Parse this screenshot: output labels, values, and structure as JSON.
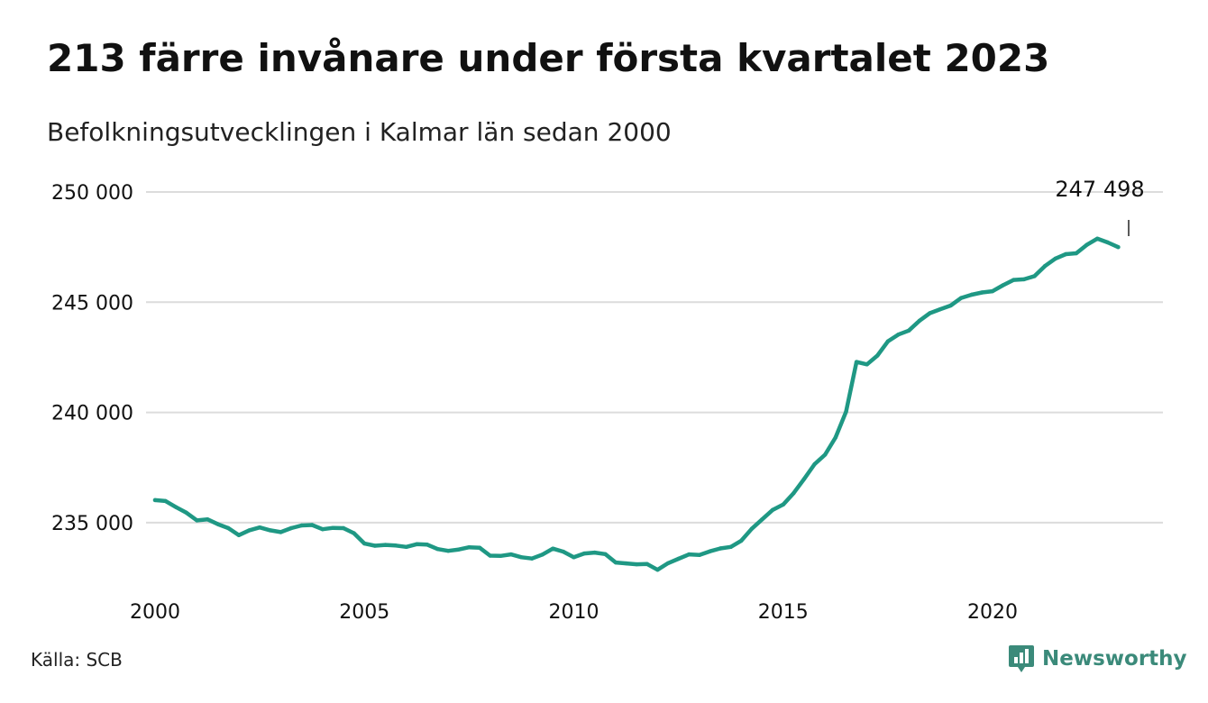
{
  "title": "213 färre invånare under första kvartalet 2023",
  "subtitle": "Befolkningsutvecklingen i Kalmar län sedan 2000",
  "source": "Källa: SCB",
  "brand": {
    "name": "Newsworthy",
    "icon": "newsworthy-logo-icon",
    "color": "#3b8a7a"
  },
  "colors": {
    "line": "#1f9884",
    "grid": "#dcdcdc",
    "text": "#111111"
  },
  "chart_data": {
    "type": "line",
    "title": "213 färre invånare under första kvartalet 2023",
    "subtitle": "Befolkningsutvecklingen i Kalmar län sedan 2000",
    "xlabel": "",
    "ylabel": "",
    "xlim": [
      2000,
      2023.25
    ],
    "ylim": [
      232500,
      250000
    ],
    "x_ticks": [
      2000,
      2005,
      2010,
      2015,
      2020
    ],
    "x_tick_labels": [
      "2000",
      "2005",
      "2010",
      "2015",
      "2020"
    ],
    "y_ticks": [
      235000,
      240000,
      245000,
      250000
    ],
    "y_tick_labels": [
      "235 000",
      "240 000",
      "245 000",
      "250 000"
    ],
    "grid": "horizontal",
    "annotation": {
      "label": "247 498",
      "x": 2023.25,
      "y": 247498
    },
    "series": [
      {
        "values": [
          [
            2000.0,
            236020
          ],
          [
            2000.25,
            235980
          ],
          [
            2000.5,
            235700
          ],
          [
            2000.75,
            235450
          ],
          [
            2001.0,
            235100
          ],
          [
            2001.25,
            235150
          ],
          [
            2001.5,
            234930
          ],
          [
            2001.75,
            234750
          ],
          [
            2002.0,
            234430
          ],
          [
            2002.25,
            234650
          ],
          [
            2002.5,
            234780
          ],
          [
            2002.75,
            234650
          ],
          [
            2003.0,
            234570
          ],
          [
            2003.25,
            234750
          ],
          [
            2003.5,
            234870
          ],
          [
            2003.75,
            234890
          ],
          [
            2004.0,
            234700
          ],
          [
            2004.25,
            234760
          ],
          [
            2004.5,
            234750
          ],
          [
            2004.75,
            234520
          ],
          [
            2005.0,
            234050
          ],
          [
            2005.25,
            233950
          ],
          [
            2005.5,
            233990
          ],
          [
            2005.75,
            233960
          ],
          [
            2006.0,
            233900
          ],
          [
            2006.25,
            234020
          ],
          [
            2006.5,
            234000
          ],
          [
            2006.75,
            233800
          ],
          [
            2007.0,
            233720
          ],
          [
            2007.25,
            233780
          ],
          [
            2007.5,
            233880
          ],
          [
            2007.75,
            233860
          ],
          [
            2008.0,
            233500
          ],
          [
            2008.25,
            233490
          ],
          [
            2008.5,
            233560
          ],
          [
            2008.75,
            233430
          ],
          [
            2009.0,
            233370
          ],
          [
            2009.25,
            233550
          ],
          [
            2009.5,
            233820
          ],
          [
            2009.75,
            233680
          ],
          [
            2010.0,
            233430
          ],
          [
            2010.25,
            233600
          ],
          [
            2010.5,
            233640
          ],
          [
            2010.75,
            233570
          ],
          [
            2011.0,
            233190
          ],
          [
            2011.25,
            233150
          ],
          [
            2011.5,
            233110
          ],
          [
            2011.75,
            233120
          ],
          [
            2012.0,
            232860
          ],
          [
            2012.25,
            233160
          ],
          [
            2012.5,
            233360
          ],
          [
            2012.75,
            233560
          ],
          [
            2013.0,
            233530
          ],
          [
            2013.25,
            233700
          ],
          [
            2013.5,
            233830
          ],
          [
            2013.75,
            233900
          ],
          [
            2014.0,
            234180
          ],
          [
            2014.25,
            234720
          ],
          [
            2014.5,
            235150
          ],
          [
            2014.75,
            235580
          ],
          [
            2015.0,
            235820
          ],
          [
            2015.25,
            236340
          ],
          [
            2015.5,
            236980
          ],
          [
            2015.75,
            237650
          ],
          [
            2016.0,
            238080
          ],
          [
            2016.25,
            238860
          ],
          [
            2016.5,
            240030
          ],
          [
            2016.75,
            242290
          ],
          [
            2017.0,
            242180
          ],
          [
            2017.25,
            242580
          ],
          [
            2017.5,
            243220
          ],
          [
            2017.75,
            243530
          ],
          [
            2018.0,
            243710
          ],
          [
            2018.25,
            244150
          ],
          [
            2018.5,
            244500
          ],
          [
            2018.75,
            244680
          ],
          [
            2019.0,
            244850
          ],
          [
            2019.25,
            245190
          ],
          [
            2019.5,
            245340
          ],
          [
            2019.75,
            245440
          ],
          [
            2020.0,
            245500
          ],
          [
            2020.25,
            245770
          ],
          [
            2020.5,
            246010
          ],
          [
            2020.75,
            246040
          ],
          [
            2021.0,
            246180
          ],
          [
            2021.25,
            246640
          ],
          [
            2021.5,
            246980
          ],
          [
            2021.75,
            247180
          ],
          [
            2022.0,
            247220
          ],
          [
            2022.25,
            247600
          ],
          [
            2022.5,
            247880
          ],
          [
            2022.75,
            247711
          ],
          [
            2023.0,
            247498
          ]
        ]
      }
    ]
  }
}
